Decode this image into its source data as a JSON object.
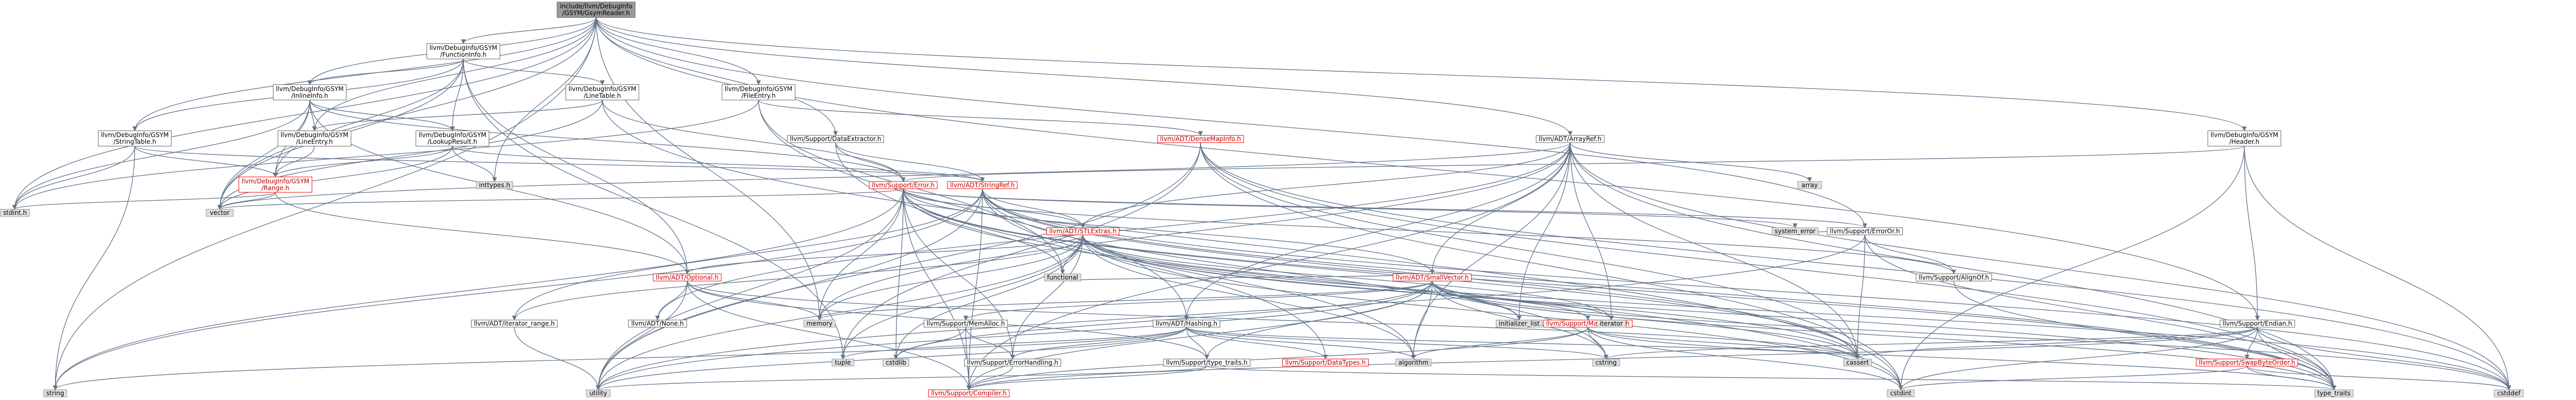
{
  "title": "include/llvm/DebugInfo/GSYM/GsymReader.h",
  "colors": {
    "edge": "#63758c",
    "root_fill": "#999999",
    "std_fill": "#e0e0e0",
    "link_fill": "#ffffff",
    "incomplete_border": "#ff0000"
  },
  "nodes": [
    {
      "id": "root",
      "lines": [
        "include/llvm/DebugInfo",
        "/GSYM/GsymReader.h"
      ],
      "kind": "root"
    },
    {
      "id": "functioninfo",
      "lines": [
        "llvm/DebugInfo/GSYM",
        "/FunctionInfo.h"
      ],
      "kind": "file"
    },
    {
      "id": "inlineinfo",
      "lines": [
        "llvm/DebugInfo/GSYM",
        "/InlineInfo.h"
      ],
      "kind": "file"
    },
    {
      "id": "linetable",
      "lines": [
        "llvm/DebugInfo/GSYM",
        "/LineTable.h"
      ],
      "kind": "file"
    },
    {
      "id": "fileentry",
      "lines": [
        "llvm/DebugInfo/GSYM",
        "/FileEntry.h"
      ],
      "kind": "file"
    },
    {
      "id": "header",
      "lines": [
        "llvm/DebugInfo/GSYM",
        "/Header.h"
      ],
      "kind": "file"
    },
    {
      "id": "stringtable",
      "lines": [
        "llvm/DebugInfo/GSYM",
        "/StringTable.h"
      ],
      "kind": "file"
    },
    {
      "id": "lineentry",
      "lines": [
        "llvm/DebugInfo/GSYM",
        "/LineEntry.h"
      ],
      "kind": "file"
    },
    {
      "id": "lookupresult",
      "lines": [
        "llvm/DebugInfo/GSYM",
        "/LookupResult.h"
      ],
      "kind": "file"
    },
    {
      "id": "range",
      "lines": [
        "llvm/DebugInfo/GSYM",
        "/Range.h"
      ],
      "kind": "red"
    },
    {
      "id": "dataextractor",
      "lines": [
        "llvm/Support/DataExtractor.h"
      ],
      "kind": "file"
    },
    {
      "id": "densemapinfo",
      "lines": [
        "llvm/ADT/DenseMapInfo.h"
      ],
      "kind": "red"
    },
    {
      "id": "arrayref",
      "lines": [
        "llvm/ADT/ArrayRef.h"
      ],
      "kind": "file"
    },
    {
      "id": "error",
      "lines": [
        "llvm/Support/Error.h"
      ],
      "kind": "red"
    },
    {
      "id": "stringref",
      "lines": [
        "llvm/ADT/StringRef.h"
      ],
      "kind": "red"
    },
    {
      "id": "stlextras",
      "lines": [
        "llvm/ADT/STLExtras.h"
      ],
      "kind": "red"
    },
    {
      "id": "optional",
      "lines": [
        "llvm/ADT/Optional.h"
      ],
      "kind": "red"
    },
    {
      "id": "smallvector",
      "lines": [
        "llvm/ADT/SmallVector.h"
      ],
      "kind": "red"
    },
    {
      "id": "erroror",
      "lines": [
        "llvm/Support/ErrorOr.h"
      ],
      "kind": "file"
    },
    {
      "id": "alignof",
      "lines": [
        "llvm/Support/AlignOf.h"
      ],
      "kind": "file"
    },
    {
      "id": "mathextras",
      "lines": [
        "llvm/Support/MathExtras.h"
      ],
      "kind": "red"
    },
    {
      "id": "endian",
      "lines": [
        "llvm/Support/Endian.h"
      ],
      "kind": "file"
    },
    {
      "id": "swapbyteorder",
      "lines": [
        "llvm/Support/SwapByteOrder.h"
      ],
      "kind": "red"
    },
    {
      "id": "iterator_range",
      "lines": [
        "llvm/ADT/iterator_range.h"
      ],
      "kind": "file"
    },
    {
      "id": "none",
      "lines": [
        "llvm/ADT/None.h"
      ],
      "kind": "file"
    },
    {
      "id": "memalloc",
      "lines": [
        "llvm/Support/MemAlloc.h"
      ],
      "kind": "file"
    },
    {
      "id": "hashing",
      "lines": [
        "llvm/ADT/Hashing.h"
      ],
      "kind": "file"
    },
    {
      "id": "errorhandling",
      "lines": [
        "llvm/Support/ErrorHandling.h"
      ],
      "kind": "file"
    },
    {
      "id": "typetraits",
      "lines": [
        "llvm/Support/type_traits.h"
      ],
      "kind": "file"
    },
    {
      "id": "datatypes",
      "lines": [
        "llvm/Support/DataTypes.h"
      ],
      "kind": "red"
    },
    {
      "id": "compiler",
      "lines": [
        "llvm/Support/Compiler.h"
      ],
      "kind": "red"
    },
    {
      "id": "inttypes",
      "lines": [
        "inttypes.h"
      ],
      "kind": "std"
    },
    {
      "id": "stdint",
      "lines": [
        "stdint.h"
      ],
      "kind": "std"
    },
    {
      "id": "vector",
      "lines": [
        "vector"
      ],
      "kind": "std"
    },
    {
      "id": "array",
      "lines": [
        "array"
      ],
      "kind": "std"
    },
    {
      "id": "system_error",
      "lines": [
        "system_error"
      ],
      "kind": "std"
    },
    {
      "id": "functional",
      "lines": [
        "functional"
      ],
      "kind": "std"
    },
    {
      "id": "initializer_list",
      "lines": [
        "initializer_list"
      ],
      "kind": "std"
    },
    {
      "id": "iterator",
      "lines": [
        "iterator"
      ],
      "kind": "std"
    },
    {
      "id": "memory",
      "lines": [
        "memory"
      ],
      "kind": "std"
    },
    {
      "id": "tuple",
      "lines": [
        "tuple"
      ],
      "kind": "std"
    },
    {
      "id": "cstdlib",
      "lines": [
        "cstdlib"
      ],
      "kind": "std"
    },
    {
      "id": "algorithm",
      "lines": [
        "algorithm"
      ],
      "kind": "std"
    },
    {
      "id": "cstring",
      "lines": [
        "cstring"
      ],
      "kind": "std"
    },
    {
      "id": "cassert",
      "lines": [
        "cassert"
      ],
      "kind": "std"
    },
    {
      "id": "cstdint",
      "lines": [
        "cstdint"
      ],
      "kind": "std"
    },
    {
      "id": "type_traits",
      "lines": [
        "type_traits"
      ],
      "kind": "std"
    },
    {
      "id": "cstddef",
      "lines": [
        "cstddef"
      ],
      "kind": "std"
    },
    {
      "id": "string",
      "lines": [
        "string"
      ],
      "kind": "std"
    },
    {
      "id": "utility",
      "lines": [
        "utility"
      ],
      "kind": "std"
    }
  ],
  "edges": [
    [
      "root",
      "functioninfo"
    ],
    [
      "root",
      "header"
    ],
    [
      "root",
      "fileentry"
    ],
    [
      "root",
      "stringtable"
    ],
    [
      "root",
      "dataextractor"
    ],
    [
      "root",
      "arrayref"
    ],
    [
      "root",
      "erroror"
    ],
    [
      "root",
      "inttypes"
    ],
    [
      "root",
      "memory"
    ],
    [
      "root",
      "stdint"
    ],
    [
      "root",
      "string"
    ],
    [
      "root",
      "vector"
    ],
    [
      "root",
      "lineentry"
    ],
    [
      "root",
      "inlineinfo"
    ],
    [
      "root",
      "endian"
    ],
    [
      "functioninfo",
      "inlineinfo"
    ],
    [
      "functioninfo",
      "linetable"
    ],
    [
      "functioninfo",
      "lookupresult"
    ],
    [
      "functioninfo",
      "range"
    ],
    [
      "functioninfo",
      "stringtable"
    ],
    [
      "functioninfo",
      "optional"
    ],
    [
      "functioninfo",
      "tuple"
    ],
    [
      "functioninfo",
      "vector"
    ],
    [
      "inlineinfo",
      "lineentry"
    ],
    [
      "inlineinfo",
      "lookupresult"
    ],
    [
      "inlineinfo",
      "range"
    ],
    [
      "inlineinfo",
      "error"
    ],
    [
      "inlineinfo",
      "optional"
    ],
    [
      "inlineinfo",
      "stdint"
    ],
    [
      "inlineinfo",
      "vector"
    ],
    [
      "linetable",
      "lineentry"
    ],
    [
      "linetable",
      "error"
    ],
    [
      "linetable",
      "cstdint"
    ],
    [
      "linetable",
      "vector"
    ],
    [
      "fileentry",
      "densemapinfo"
    ],
    [
      "fileentry",
      "hashing"
    ],
    [
      "fileentry",
      "functional"
    ],
    [
      "fileentry",
      "stdint"
    ],
    [
      "header",
      "endian"
    ],
    [
      "header",
      "error"
    ],
    [
      "header",
      "cstddef"
    ],
    [
      "header",
      "cstdint"
    ],
    [
      "stringtable",
      "stringref"
    ],
    [
      "stringtable",
      "range"
    ],
    [
      "stringtable",
      "stdint"
    ],
    [
      "stringtable",
      "string"
    ],
    [
      "lineentry",
      "range"
    ],
    [
      "lookupresult",
      "range"
    ],
    [
      "lookupresult",
      "stringref"
    ],
    [
      "lookupresult",
      "inttypes"
    ],
    [
      "lookupresult",
      "vector"
    ],
    [
      "range",
      "optional"
    ],
    [
      "range",
      "stdint"
    ],
    [
      "range",
      "vector"
    ],
    [
      "dataextractor",
      "error"
    ],
    [
      "dataextractor",
      "datatypes"
    ],
    [
      "dataextractor",
      "stringref"
    ],
    [
      "densemapinfo",
      "cassert"
    ],
    [
      "densemapinfo",
      "cstddef"
    ],
    [
      "densemapinfo",
      "cstdint"
    ],
    [
      "densemapinfo",
      "tuple"
    ],
    [
      "densemapinfo",
      "type_traits"
    ],
    [
      "densemapinfo",
      "utility"
    ],
    [
      "arrayref",
      "hashing"
    ],
    [
      "arrayref",
      "none"
    ],
    [
      "arrayref",
      "smallvector"
    ],
    [
      "arrayref",
      "stlextras"
    ],
    [
      "arrayref",
      "compiler"
    ],
    [
      "arrayref",
      "algorithm"
    ],
    [
      "arrayref",
      "array"
    ],
    [
      "arrayref",
      "cassert"
    ],
    [
      "arrayref",
      "cstddef"
    ],
    [
      "arrayref",
      "initializer_list"
    ],
    [
      "arrayref",
      "iterator"
    ],
    [
      "arrayref",
      "memory"
    ],
    [
      "arrayref",
      "type_traits"
    ],
    [
      "arrayref",
      "vector"
    ],
    [
      "error",
      "stlextras"
    ],
    [
      "error",
      "smallvector"
    ],
    [
      "error",
      "alignof"
    ],
    [
      "error",
      "compiler"
    ],
    [
      "error",
      "errorhandling"
    ],
    [
      "error",
      "erroror"
    ],
    [
      "error",
      "cassert"
    ],
    [
      "error",
      "cstdint"
    ],
    [
      "error",
      "cstdlib"
    ],
    [
      "error",
      "functional"
    ],
    [
      "error",
      "memory"
    ],
    [
      "error",
      "string"
    ],
    [
      "error",
      "system_error"
    ],
    [
      "error",
      "type_traits"
    ],
    [
      "error",
      "utility"
    ],
    [
      "error",
      "vector"
    ],
    [
      "stringref",
      "stlextras"
    ],
    [
      "stringref",
      "iterator_range"
    ],
    [
      "stringref",
      "compiler"
    ],
    [
      "stringref",
      "algorithm"
    ],
    [
      "stringref",
      "cassert"
    ],
    [
      "stringref",
      "cstddef"
    ],
    [
      "stringref",
      "cstring"
    ],
    [
      "stringref",
      "limits"
    ],
    [
      "stringref",
      "string"
    ],
    [
      "stringref",
      "type_traits"
    ],
    [
      "stringref",
      "utility"
    ],
    [
      "stlextras",
      "optional"
    ],
    [
      "stlextras",
      "iterator_range"
    ],
    [
      "stlextras",
      "errorhandling"
    ],
    [
      "stlextras",
      "algorithm"
    ],
    [
      "stlextras",
      "cassert"
    ],
    [
      "stlextras",
      "cstddef"
    ],
    [
      "stlextras",
      "cstdint"
    ],
    [
      "stlextras",
      "cstdlib"
    ],
    [
      "stlextras",
      "functional"
    ],
    [
      "stlextras",
      "initializer_list"
    ],
    [
      "stlextras",
      "iterator"
    ],
    [
      "stlextras",
      "memory"
    ],
    [
      "stlextras",
      "tuple"
    ],
    [
      "stlextras",
      "type_traits"
    ],
    [
      "stlextras",
      "utility"
    ],
    [
      "optional",
      "none"
    ],
    [
      "optional",
      "compiler"
    ],
    [
      "optional",
      "typetraits"
    ],
    [
      "optional",
      "cassert"
    ],
    [
      "optional",
      "memory"
    ],
    [
      "optional",
      "new"
    ],
    [
      "optional",
      "utility"
    ],
    [
      "smallvector",
      "memalloc"
    ],
    [
      "smallvector",
      "typetraits"
    ],
    [
      "smallvector",
      "compiler"
    ],
    [
      "smallvector",
      "mathextras"
    ],
    [
      "smallvector",
      "algorithm"
    ],
    [
      "smallvector",
      "cassert"
    ],
    [
      "smallvector",
      "cstddef"
    ],
    [
      "smallvector",
      "cstdlib"
    ],
    [
      "smallvector",
      "cstring"
    ],
    [
      "smallvector",
      "functional"
    ],
    [
      "smallvector",
      "initializer_list"
    ],
    [
      "smallvector",
      "iterator"
    ],
    [
      "smallvector",
      "limits"
    ],
    [
      "smallvector",
      "memory"
    ],
    [
      "smallvector",
      "new"
    ],
    [
      "smallvector",
      "type_traits"
    ],
    [
      "smallvector",
      "utility"
    ],
    [
      "erroror",
      "alignof"
    ],
    [
      "erroror",
      "cassert"
    ],
    [
      "erroror",
      "system_error"
    ],
    [
      "erroror",
      "type_traits"
    ],
    [
      "erroror",
      "utility"
    ],
    [
      "alignof",
      "type_traits"
    ],
    [
      "mathextras",
      "compiler"
    ],
    [
      "mathextras",
      "algorithm"
    ],
    [
      "mathextras",
      "cassert"
    ],
    [
      "mathextras",
      "climits"
    ],
    [
      "mathextras",
      "cmath"
    ],
    [
      "mathextras",
      "cstdint"
    ],
    [
      "mathextras",
      "cstring"
    ],
    [
      "mathextras",
      "limits"
    ],
    [
      "mathextras",
      "type_traits"
    ],
    [
      "endian",
      "compiler"
    ],
    [
      "endian",
      "swapbyteorder"
    ],
    [
      "endian",
      "cassert"
    ],
    [
      "endian",
      "cstddef"
    ],
    [
      "endian",
      "cstdint"
    ],
    [
      "endian",
      "cstring"
    ],
    [
      "endian",
      "type_traits"
    ],
    [
      "swapbyteorder",
      "cstddef"
    ],
    [
      "swapbyteorder",
      "cstdint"
    ],
    [
      "swapbyteorder",
      "type_traits"
    ],
    [
      "iterator_range",
      "utility"
    ],
    [
      "memalloc",
      "compiler"
    ],
    [
      "memalloc",
      "errorhandling"
    ],
    [
      "memalloc",
      "cstdlib"
    ],
    [
      "hashing",
      "errorhandling"
    ],
    [
      "hashing",
      "typetraits"
    ],
    [
      "hashing",
      "datatypes"
    ],
    [
      "hashing",
      "algorithm"
    ],
    [
      "hashing",
      "cassert"
    ],
    [
      "hashing",
      "cstring"
    ],
    [
      "hashing",
      "string"
    ],
    [
      "hashing",
      "tuple"
    ],
    [
      "hashing",
      "utility"
    ],
    [
      "errorhandling",
      "compiler"
    ],
    [
      "typetraits",
      "compiler"
    ],
    [
      "typetraits",
      "type_traits"
    ],
    [
      "typetraits",
      "utility"
    ]
  ]
}
